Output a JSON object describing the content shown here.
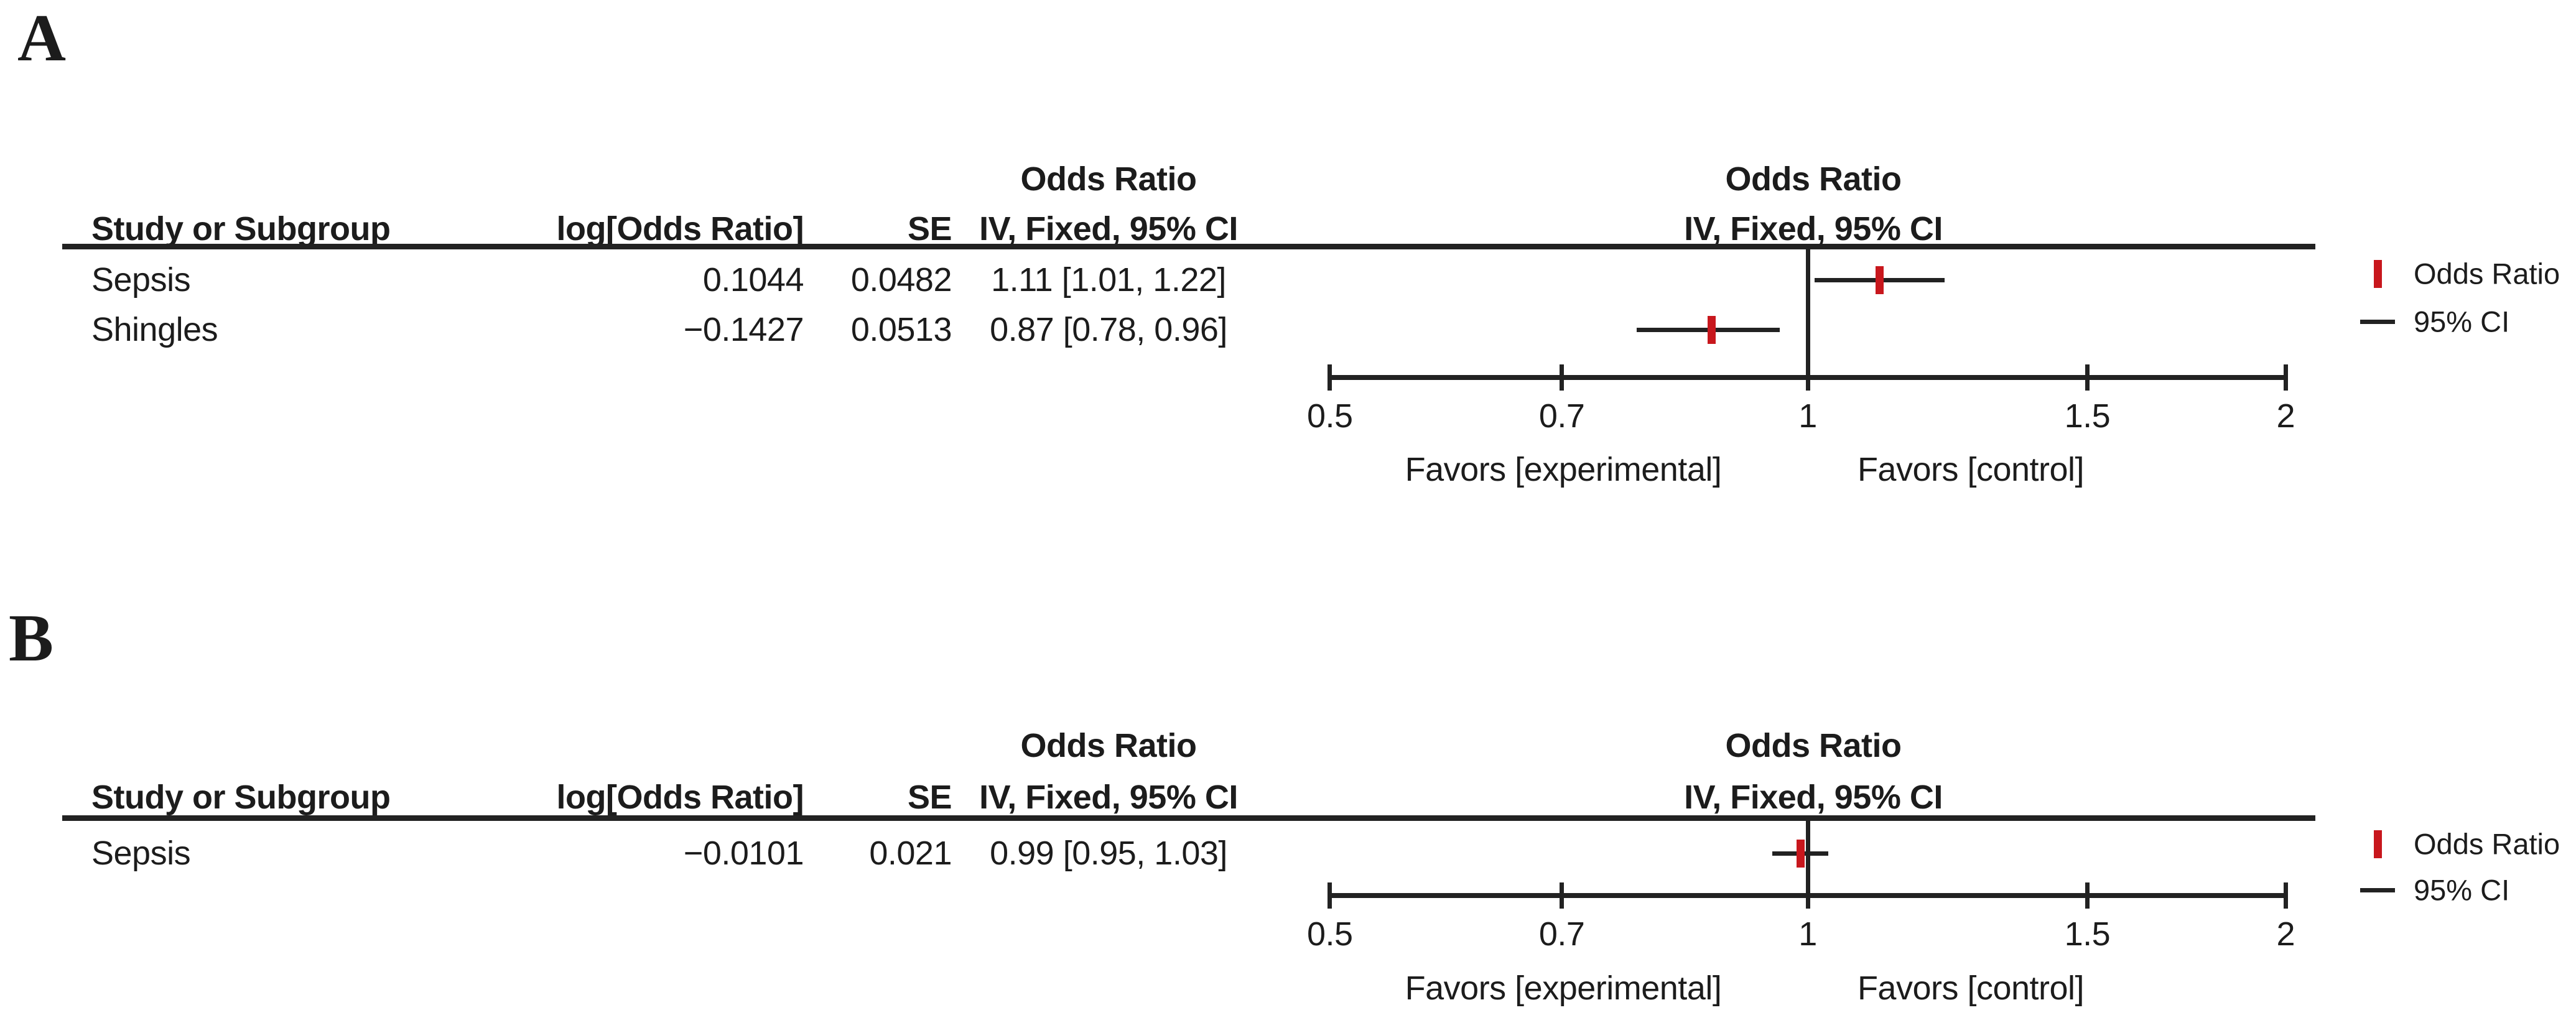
{
  "figure": {
    "colors": {
      "marker_red": "#c8171d",
      "line": "#222222",
      "text": "#1c1c1c",
      "background": "#ffffff"
    },
    "panels": [
      {
        "label": "A",
        "columns": {
          "effect_header_top": "Odds Ratio",
          "study": "Study or Subgroup",
          "log_or": "log[Odds Ratio]",
          "se": "SE",
          "effect_ci": "IV, Fixed, 95% CI",
          "plot_header_top": "Odds Ratio",
          "plot_header_ci": "IV, Fixed, 95% CI"
        },
        "rows": [
          {
            "study": "Sepsis",
            "log_odds_ratio": "0.1044",
            "se": "0.0482",
            "ci_text": "1.11 [1.01, 1.22]",
            "or": 1.11,
            "ci_low": 1.01,
            "ci_high": 1.22
          },
          {
            "study": "Shingles",
            "log_odds_ratio": "−0.1427",
            "se": "0.0513",
            "ci_text": "0.87 [0.78, 0.96]",
            "or": 0.87,
            "ci_low": 0.78,
            "ci_high": 0.96
          }
        ],
        "axis_ticks": [
          "0.5",
          "0.7",
          "1",
          "1.5",
          "2"
        ],
        "favors_left": "Favors [experimental]",
        "favors_right": "Favors [control]",
        "legend": {
          "or_label": "Odds Ratio",
          "ci_label": "95% CI"
        }
      },
      {
        "label": "B",
        "columns": {
          "effect_header_top": "Odds Ratio",
          "study": "Study or Subgroup",
          "log_or": "log[Odds Ratio]",
          "se": "SE",
          "effect_ci": "IV, Fixed, 95% CI",
          "plot_header_top": "Odds Ratio",
          "plot_header_ci": "IV, Fixed, 95% CI"
        },
        "rows": [
          {
            "study": "Sepsis",
            "log_odds_ratio": "−0.0101",
            "se": "0.021",
            "ci_text": "0.99 [0.95, 1.03]",
            "or": 0.99,
            "ci_low": 0.95,
            "ci_high": 1.03
          }
        ],
        "axis_ticks": [
          "0.5",
          "0.7",
          "1",
          "1.5",
          "2"
        ],
        "favors_left": "Favors [experimental]",
        "favors_right": "Favors [control]",
        "legend": {
          "or_label": "Odds Ratio",
          "ci_label": "95% CI"
        }
      }
    ]
  },
  "chart_data": [
    {
      "type": "scatter",
      "panel": "A",
      "title": "Odds Ratio IV, Fixed, 95% CI (forest plot)",
      "x_scale": "log",
      "xlim": [
        0.5,
        2
      ],
      "x_ticks": [
        0.5,
        0.7,
        1,
        1.5,
        2
      ],
      "reference_line": 1,
      "xlabel_left": "Favors [experimental]",
      "xlabel_right": "Favors [control]",
      "legend_entries": [
        "Odds Ratio",
        "95% CI"
      ],
      "legend_position": "right",
      "series": [
        {
          "name": "Sepsis",
          "log_odds_ratio": 0.1044,
          "se": 0.0482,
          "odds_ratio": 1.11,
          "ci95": [
            1.01,
            1.22
          ]
        },
        {
          "name": "Shingles",
          "log_odds_ratio": -0.1427,
          "se": 0.0513,
          "odds_ratio": 0.87,
          "ci95": [
            0.78,
            0.96
          ]
        }
      ]
    },
    {
      "type": "scatter",
      "panel": "B",
      "title": "Odds Ratio IV, Fixed, 95% CI (forest plot)",
      "x_scale": "log",
      "xlim": [
        0.5,
        2
      ],
      "x_ticks": [
        0.5,
        0.7,
        1,
        1.5,
        2
      ],
      "reference_line": 1,
      "xlabel_left": "Favors [experimental]",
      "xlabel_right": "Favors [control]",
      "legend_entries": [
        "Odds Ratio",
        "95% CI"
      ],
      "legend_position": "right",
      "series": [
        {
          "name": "Sepsis",
          "log_odds_ratio": -0.0101,
          "se": 0.021,
          "odds_ratio": 0.99,
          "ci95": [
            0.95,
            1.03
          ]
        }
      ]
    }
  ]
}
